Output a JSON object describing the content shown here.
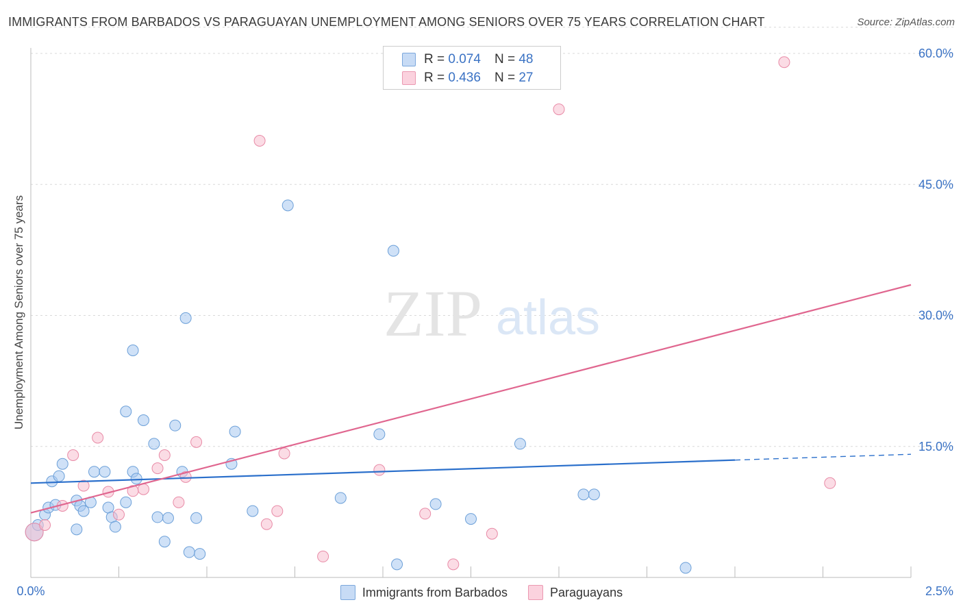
{
  "title": "IMMIGRANTS FROM BARBADOS VS PARAGUAYAN UNEMPLOYMENT AMONG SENIORS OVER 75 YEARS CORRELATION CHART",
  "source": "Source: ZipAtlas.com",
  "watermark": {
    "zip": "ZIP",
    "atlas": "atlas"
  },
  "legend_top": [
    {
      "r_label": "R =",
      "r_value": "0.074",
      "n_label": "N =",
      "n_value": "48"
    },
    {
      "r_label": "R =",
      "r_value": "0.436",
      "n_label": "N =",
      "n_value": "27"
    }
  ],
  "chart_data": {
    "type": "scatter",
    "ylabel": "Unemployment Among Seniors over 75 years",
    "xlim": [
      0.0,
      2.5
    ],
    "ylim": [
      0,
      63
    ],
    "x_tick_labels": [
      "0.0%",
      "2.5%"
    ],
    "y_ticks": [
      15,
      30,
      45,
      60
    ],
    "y_tick_labels": [
      "15.0%",
      "30.0%",
      "45.0%",
      "60.0%"
    ],
    "grid": true,
    "series": [
      {
        "name": "Immigrants from Barbados",
        "color": "#a8c8f0",
        "edge": "#6b9fd8",
        "trend_color": "#2a6fcb",
        "trend": {
          "x0": 0.0,
          "y0": 10.8,
          "x1": 2.5,
          "y1": 14.1,
          "solid_until": 2.0
        },
        "points": [
          [
            0.01,
            5.2
          ],
          [
            0.02,
            6.0
          ],
          [
            0.04,
            7.2
          ],
          [
            0.05,
            8.0
          ],
          [
            0.06,
            11.0
          ],
          [
            0.07,
            8.3
          ],
          [
            0.08,
            11.6
          ],
          [
            0.09,
            13.0
          ],
          [
            0.13,
            5.5
          ],
          [
            0.13,
            8.8
          ],
          [
            0.14,
            8.2
          ],
          [
            0.15,
            7.6
          ],
          [
            0.17,
            8.6
          ],
          [
            0.18,
            12.1
          ],
          [
            0.21,
            12.1
          ],
          [
            0.22,
            8.0
          ],
          [
            0.23,
            6.9
          ],
          [
            0.24,
            5.8
          ],
          [
            0.27,
            8.6
          ],
          [
            0.27,
            19.0
          ],
          [
            0.29,
            12.1
          ],
          [
            0.29,
            26.0
          ],
          [
            0.3,
            11.3
          ],
          [
            0.32,
            18.0
          ],
          [
            0.35,
            15.3
          ],
          [
            0.36,
            6.9
          ],
          [
            0.38,
            4.1
          ],
          [
            0.39,
            6.8
          ],
          [
            0.41,
            17.4
          ],
          [
            0.43,
            12.1
          ],
          [
            0.44,
            29.7
          ],
          [
            0.45,
            2.9
          ],
          [
            0.47,
            6.8
          ],
          [
            0.48,
            2.7
          ],
          [
            0.57,
            13.0
          ],
          [
            0.58,
            16.7
          ],
          [
            0.63,
            7.6
          ],
          [
            0.73,
            42.6
          ],
          [
            0.88,
            9.1
          ],
          [
            0.99,
            16.4
          ],
          [
            1.03,
            37.4
          ],
          [
            1.04,
            1.5
          ],
          [
            1.15,
            8.4
          ],
          [
            1.25,
            6.7
          ],
          [
            1.39,
            15.3
          ],
          [
            1.57,
            9.5
          ],
          [
            1.6,
            9.5
          ],
          [
            1.86,
            1.1
          ]
        ]
      },
      {
        "name": "Paraguayans",
        "color": "#f8bfd0",
        "edge": "#e88aa6",
        "trend_color": "#e0668f",
        "trend": {
          "x0": 0.0,
          "y0": 7.4,
          "x1": 2.5,
          "y1": 33.5
        },
        "points": [
          [
            0.01,
            5.2
          ],
          [
            0.04,
            6.0
          ],
          [
            0.09,
            8.2
          ],
          [
            0.12,
            14.0
          ],
          [
            0.15,
            10.5
          ],
          [
            0.19,
            16.0
          ],
          [
            0.22,
            9.8
          ],
          [
            0.25,
            7.2
          ],
          [
            0.29,
            9.9
          ],
          [
            0.32,
            10.1
          ],
          [
            0.36,
            12.5
          ],
          [
            0.38,
            14.0
          ],
          [
            0.42,
            8.6
          ],
          [
            0.44,
            11.5
          ],
          [
            0.47,
            15.5
          ],
          [
            0.65,
            50.0
          ],
          [
            0.67,
            6.1
          ],
          [
            0.7,
            7.6
          ],
          [
            0.72,
            14.2
          ],
          [
            0.83,
            2.4
          ],
          [
            0.99,
            12.3
          ],
          [
            1.12,
            7.3
          ],
          [
            1.2,
            1.5
          ],
          [
            1.31,
            5.0
          ],
          [
            1.5,
            53.6
          ],
          [
            2.14,
            59.0
          ],
          [
            2.27,
            10.8
          ]
        ]
      }
    ]
  }
}
